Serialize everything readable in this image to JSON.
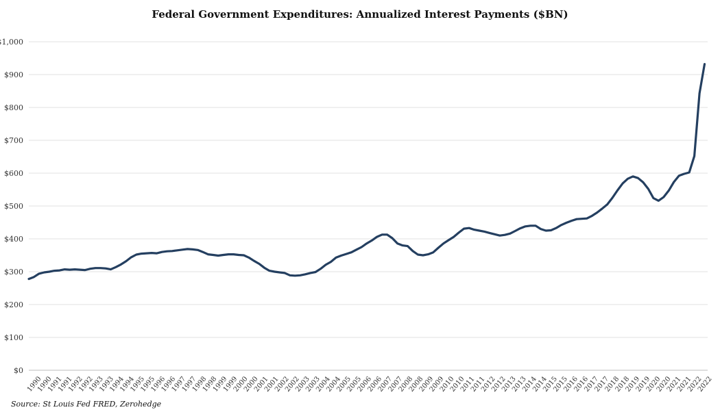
{
  "chart_data": {
    "type": "line",
    "title": "Federal Government Expenditures: Annualized Interest Payments ($BN)",
    "source": "Source: St Louis Fed FRED, Zerohedge",
    "ylim": [
      0,
      1000
    ],
    "y_ticks": [
      "$0",
      "$100",
      "$200",
      "$300",
      "$400",
      "$500",
      "$600",
      "$700",
      "$800",
      "$900",
      "$1,000"
    ],
    "x_tick_labels": [
      "1990",
      "1990",
      "1991",
      "1991",
      "1992",
      "1992",
      "1993",
      "1993",
      "1994",
      "1994",
      "1995",
      "1995",
      "1996",
      "1996",
      "1997",
      "1997",
      "1998",
      "1998",
      "1999",
      "1999",
      "2000",
      "2000",
      "2001",
      "2001",
      "2002",
      "2002",
      "2003",
      "2003",
      "2004",
      "2004",
      "2005",
      "2005",
      "2006",
      "2006",
      "2007",
      "2007",
      "2008",
      "2008",
      "2009",
      "2009",
      "2010",
      "2010",
      "2011",
      "2011",
      "2012",
      "2012",
      "2013",
      "2013",
      "2014",
      "2014",
      "2015",
      "2015",
      "2016",
      "2016",
      "2017",
      "2017",
      "2018",
      "2018",
      "2019",
      "2019",
      "2020",
      "2020",
      "2021",
      "2021",
      "2022",
      "2022"
    ],
    "grid": "horizontal",
    "legend": "none",
    "line_color": "#243f60",
    "series": [
      {
        "x": [
          1990.0,
          1990.25,
          1990.5,
          1990.75,
          1991.0,
          1991.25,
          1991.5,
          1991.75,
          1992.0,
          1992.25,
          1992.5,
          1992.75,
          1993.0,
          1993.25,
          1993.5,
          1993.75,
          1994.0,
          1994.25,
          1994.5,
          1994.75,
          1995.0,
          1995.25,
          1995.5,
          1995.75,
          1996.0,
          1996.25,
          1996.5,
          1996.75,
          1997.0,
          1997.25,
          1997.5,
          1997.75,
          1998.0,
          1998.25,
          1998.5,
          1998.75,
          1999.0,
          1999.25,
          1999.5,
          1999.75,
          2000.0,
          2000.25,
          2000.5,
          2000.75,
          2001.0,
          2001.25,
          2001.5,
          2001.75,
          2002.0,
          2002.25,
          2002.5,
          2002.75,
          2003.0,
          2003.25,
          2003.5,
          2003.75,
          2004.0,
          2004.25,
          2004.5,
          2004.75,
          2005.0,
          2005.25,
          2005.5,
          2005.75,
          2006.0,
          2006.25,
          2006.5,
          2006.75,
          2007.0,
          2007.25,
          2007.5,
          2007.75,
          2008.0,
          2008.25,
          2008.5,
          2008.75,
          2009.0,
          2009.25,
          2009.5,
          2009.75,
          2010.0,
          2010.25,
          2010.5,
          2010.75,
          2011.0,
          2011.25,
          2011.5,
          2011.75,
          2012.0,
          2012.25,
          2012.5,
          2012.75,
          2013.0,
          2013.25,
          2013.5,
          2013.75,
          2014.0,
          2014.25,
          2014.5,
          2014.75,
          2015.0,
          2015.25,
          2015.5,
          2015.75,
          2016.0,
          2016.25,
          2016.5,
          2016.75,
          2017.0,
          2017.25,
          2017.5,
          2017.75,
          2018.0,
          2018.25,
          2018.5,
          2018.75,
          2019.0,
          2019.25,
          2019.5,
          2019.75,
          2020.0,
          2020.25,
          2020.5,
          2020.75,
          2021.0,
          2021.25,
          2021.5,
          2021.75,
          2022.0,
          2022.25,
          2022.5,
          2022.75,
          2023.0
        ],
        "values": [
          278,
          284,
          294,
          298,
          300,
          303,
          304,
          307,
          306,
          307,
          306,
          305,
          309,
          311,
          311,
          310,
          307,
          314,
          322,
          332,
          344,
          352,
          355,
          356,
          357,
          356,
          360,
          362,
          363,
          365,
          367,
          369,
          368,
          366,
          360,
          353,
          351,
          349,
          351,
          353,
          353,
          351,
          350,
          343,
          333,
          324,
          312,
          303,
          300,
          298,
          296,
          289,
          288,
          289,
          292,
          296,
          299,
          309,
          321,
          330,
          343,
          349,
          354,
          359,
          367,
          375,
          386,
          395,
          406,
          413,
          413,
          402,
          386,
          380,
          378,
          363,
          352,
          350,
          353,
          359,
          373,
          386,
          396,
          406,
          419,
          431,
          433,
          428,
          425,
          422,
          418,
          414,
          410,
          412,
          416,
          424,
          432,
          438,
          440,
          440,
          430,
          425,
          426,
          433,
          442,
          449,
          455,
          460,
          461,
          462,
          470,
          480,
          492,
          505,
          525,
          548,
          569,
          583,
          590,
          585,
          572,
          552,
          524,
          516,
          527,
          547,
          573,
          592,
          598,
          602,
          652,
          843,
          932
        ]
      }
    ]
  }
}
